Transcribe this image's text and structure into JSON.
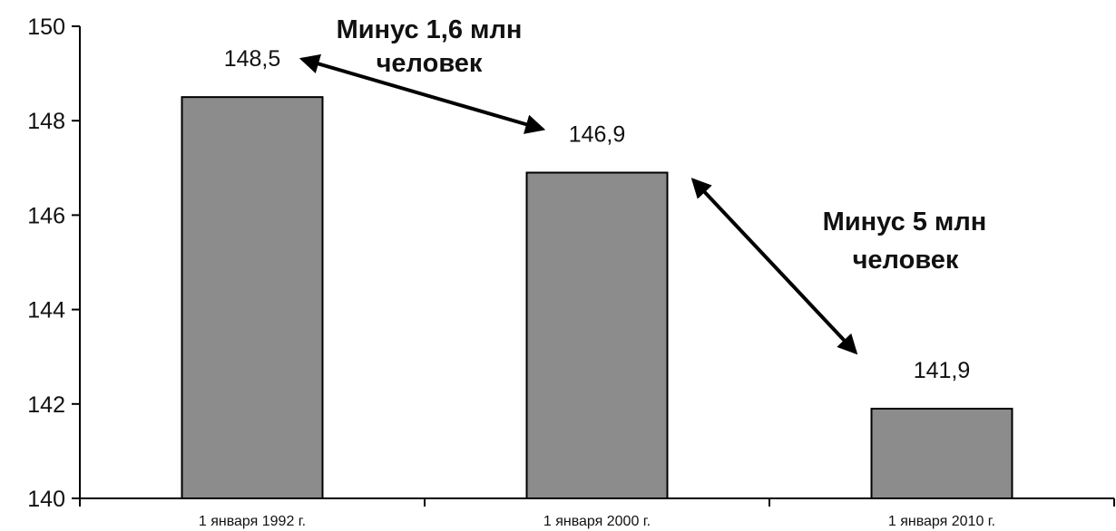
{
  "chart_data": {
    "type": "bar",
    "categories": [
      "1 января 1992 г.",
      "1 января 2000 г.",
      "1 января 2010 г."
    ],
    "values": [
      148.5,
      146.9,
      141.9
    ],
    "value_labels": [
      "148,5",
      "146,9",
      "141,9"
    ],
    "title": "",
    "xlabel": "",
    "ylabel": "",
    "ylim": [
      140,
      150
    ],
    "yticks": [
      140,
      142,
      144,
      146,
      148,
      150
    ],
    "ytick_labels": [
      "140",
      "142",
      "144",
      "146",
      "148",
      "150"
    ],
    "grid": false,
    "legend": "none",
    "annotations": [
      {
        "lines": [
          "Минус 1,6 млн",
          "человек"
        ],
        "from_category": 0,
        "to_category": 1
      },
      {
        "lines": [
          "Минус 5 млн",
          "человек"
        ],
        "from_category": 1,
        "to_category": 2
      }
    ]
  },
  "colors": {
    "bar_fill": "#8c8c8c",
    "bar_stroke": "#000000",
    "axis": "#000000",
    "text": "#111111",
    "arrow": "#000000"
  }
}
